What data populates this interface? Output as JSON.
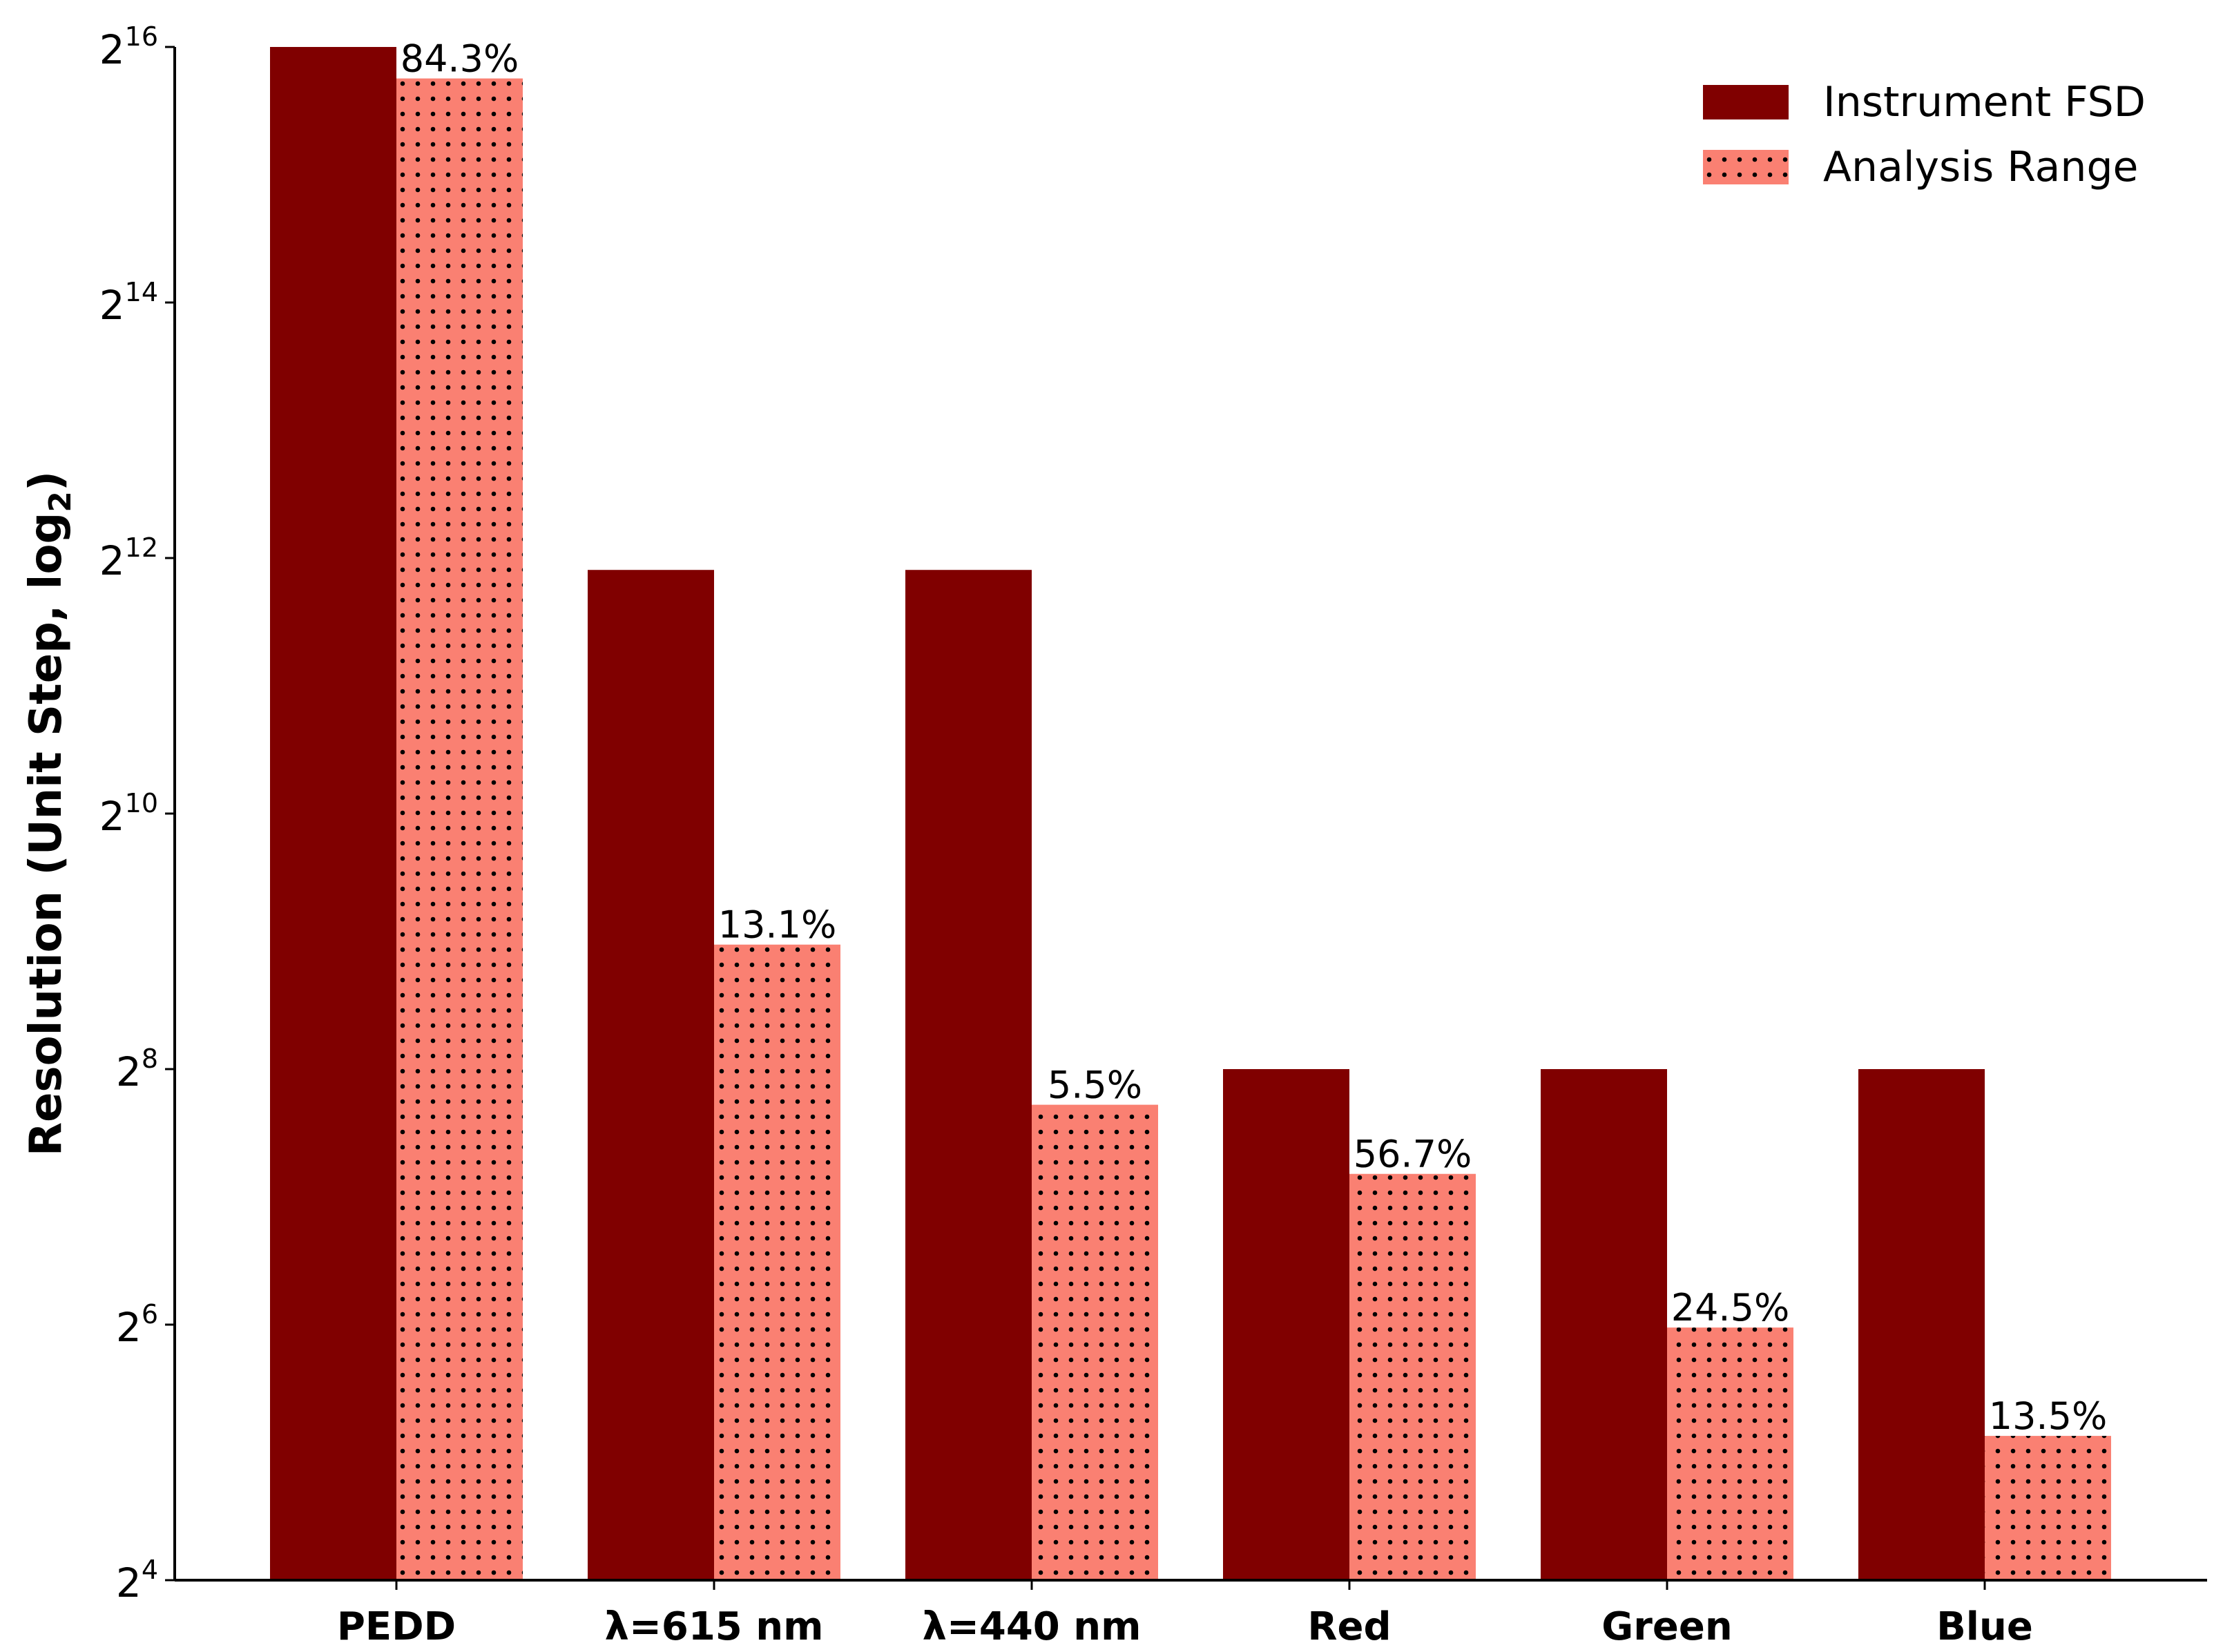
{
  "chart_data": {
    "type": "bar",
    "title": "",
    "xlabel": "",
    "ylabel": "Resolution (Unit Step, log",
    "ylabel_subscript": "2",
    "ylabel_suffix": ")",
    "y_scale": "log2",
    "ylim": [
      16,
      65536
    ],
    "y_ticks": [
      {
        "base": "2",
        "exp": "4",
        "value": 16
      },
      {
        "base": "2",
        "exp": "6",
        "value": 64
      },
      {
        "base": "2",
        "exp": "8",
        "value": 256
      },
      {
        "base": "2",
        "exp": "10",
        "value": 1024
      },
      {
        "base": "2",
        "exp": "12",
        "value": 4096
      },
      {
        "base": "2",
        "exp": "14",
        "value": 16384
      },
      {
        "base": "2",
        "exp": "16",
        "value": 65536
      }
    ],
    "categories": [
      "PEDD",
      "λ=615 nm",
      "λ=440 nm",
      "Red",
      "Green",
      "Blue"
    ],
    "series": [
      {
        "name": "Instrument FSD",
        "color": "#800000",
        "pattern": "solid",
        "values": [
          65536,
          3840,
          3840,
          256,
          256,
          256
        ]
      },
      {
        "name": "Analysis Range",
        "color": "#fa8072",
        "pattern": "dots",
        "values": [
          55247,
          503,
          211,
          145,
          63,
          35
        ],
        "labels": [
          "84.3%",
          "13.1%",
          "5.5%",
          "56.7%",
          "24.5%",
          "13.5%"
        ]
      }
    ],
    "legend_position": "top-right",
    "grid": false
  }
}
